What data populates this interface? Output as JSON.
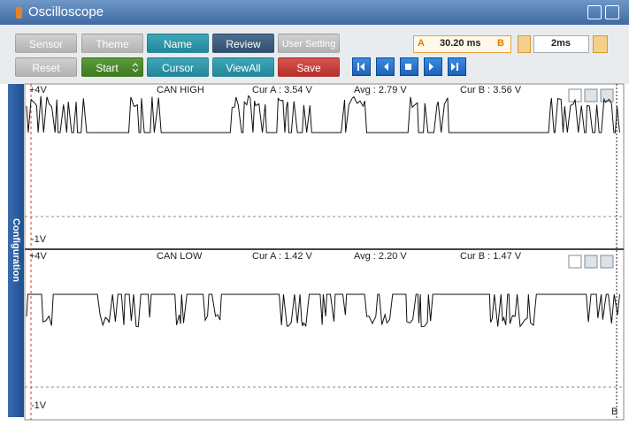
{
  "title_bar": {
    "title": "Oscilloscope"
  },
  "toolbar": {
    "row1": [
      "Sensor",
      "Theme",
      "Name",
      "Review",
      "User Setting"
    ],
    "row2": [
      "Reset",
      "Start",
      "Cursor",
      "ViewAll",
      "Save"
    ],
    "cursor_a_label": "A",
    "cursor_time": "30.20 ms",
    "cursor_b_label": "B",
    "time_div": "2ms"
  },
  "sidebar": {
    "label": "Configuration"
  },
  "channels": [
    {
      "max": "+4V",
      "min": "-1V",
      "name": "CAN HIGH",
      "cur_a": "Cur A : 3.54 V",
      "avg": "Avg : 2.79 V",
      "cur_b": "Cur B : 3.56 V"
    },
    {
      "max": "+4V",
      "min": "-1V",
      "name": "CAN LOW",
      "cur_a": "Cur A : 1.42 V",
      "avg": "Avg : 2.20 V",
      "cur_b": "Cur B : 1.47 V"
    }
  ],
  "cursor_b_marker": "B"
}
